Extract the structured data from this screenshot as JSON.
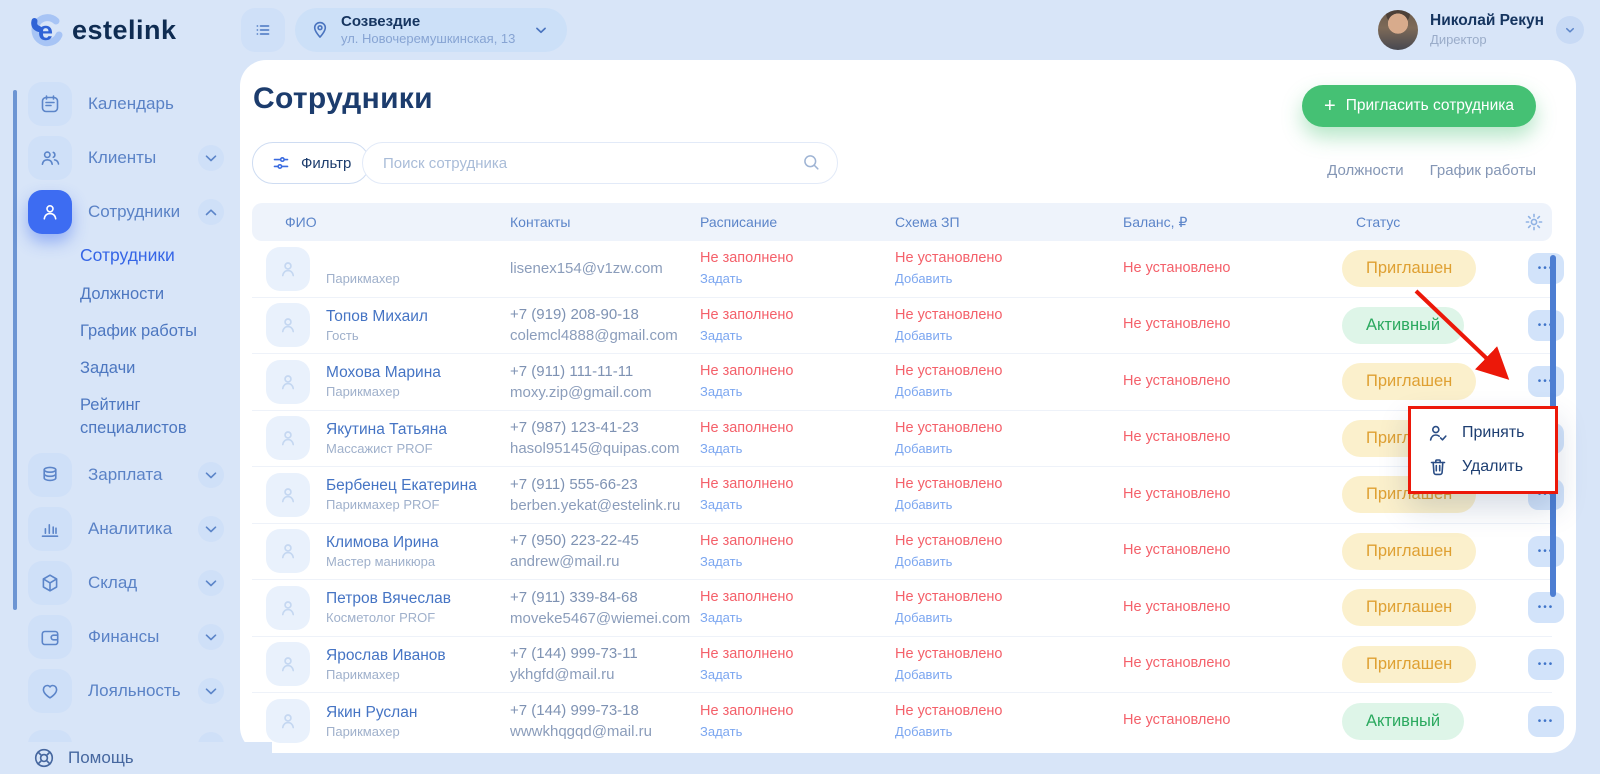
{
  "topbar": {
    "logo_text": "estelink",
    "location": {
      "title": "Созвездие",
      "subtitle": "ул. Новочеремушкинская, 13"
    },
    "user": {
      "name": "Николай Рекун",
      "role": "Директор"
    }
  },
  "sidebar": {
    "items": [
      {
        "id": "calendar",
        "label": "Календарь",
        "icon": "calendar"
      },
      {
        "id": "clients",
        "label": "Клиенты",
        "icon": "clients",
        "chevron": "down"
      },
      {
        "id": "employees",
        "label": "Сотрудники",
        "icon": "person",
        "chevron": "up",
        "active": true,
        "submenu": [
          {
            "label": "Сотрудники",
            "active": true
          },
          {
            "label": "Должности"
          },
          {
            "label": "График работы"
          },
          {
            "label": "Задачи"
          },
          {
            "label": "Рейтинг специалистов"
          }
        ]
      },
      {
        "id": "salary",
        "label": "Зарплата",
        "icon": "database",
        "chevron": "down"
      },
      {
        "id": "analytics",
        "label": "Аналитика",
        "icon": "chart",
        "chevron": "down"
      },
      {
        "id": "warehouse",
        "label": "Склад",
        "icon": "cube",
        "chevron": "down"
      },
      {
        "id": "finance",
        "label": "Финансы",
        "icon": "wallet",
        "chevron": "down"
      },
      {
        "id": "loyalty",
        "label": "Лояльность",
        "icon": "heart",
        "chevron": "down"
      }
    ],
    "help_label": "Помощь"
  },
  "main": {
    "title": "Сотрудники",
    "filter_label": "Фильтр",
    "search_placeholder": "Поиск сотрудника",
    "invite_button": {
      "plus": "+",
      "label": "Пригласить сотрудника"
    },
    "quick_links": [
      "Должности",
      "График работы"
    ],
    "table": {
      "columns": [
        "ФИО",
        "Контакты",
        "Расписание",
        "Схема ЗП",
        "Баланс, ₽",
        "Статус"
      ],
      "schedule_empty": "Не заполнено",
      "schedule_action": "Задать",
      "scheme_empty": "Не установлено",
      "scheme_action": "Добавить",
      "balance_empty": "Не установлено",
      "rows": [
        {
          "name": "",
          "role": "Парикмахер",
          "phone": "",
          "email": "lisenex154@v1zw.com",
          "status": "Приглашен",
          "status_type": "invited"
        },
        {
          "name": "Топов Михаил",
          "role": "Гость",
          "phone": "+7 (919) 208-90-18",
          "email": "colemcl4888@gmail.com",
          "status": "Активный",
          "status_type": "active"
        },
        {
          "name": "Мохова Марина",
          "role": "Парикмахер",
          "phone": "+7 (911) 111-11-11",
          "email": "moxy.zip@gmail.com",
          "status": "Приглашен",
          "status_type": "invited"
        },
        {
          "name": "Якутина Татьяна",
          "role": "Массажист PROF",
          "phone": "+7 (987) 123-41-23",
          "email": "hasol95145@quipas.com",
          "status": "Приглашен",
          "status_type": "invited"
        },
        {
          "name": "Бербенец Екатерина",
          "role": "Парикмахер PROF",
          "phone": "+7 (911) 555-66-23",
          "email": "berben.yekat@estelink.ru",
          "status": "Приглашен",
          "status_type": "invited"
        },
        {
          "name": "Климова Ирина",
          "role": "Мастер маникюра",
          "phone": "+7 (950) 223-22-45",
          "email": "andrew@mail.ru",
          "status": "Приглашен",
          "status_type": "invited"
        },
        {
          "name": "Петров Вячеслав",
          "role": "Косметолог PROF",
          "phone": "+7 (911) 339-84-68",
          "email": "moveke5467@wiemei.com",
          "status": "Приглашен",
          "status_type": "invited"
        },
        {
          "name": "Ярослав Иванов",
          "role": "Парикмахер",
          "phone": "+7 (144) 999-73-11",
          "email": "ykhgfd@mail.ru",
          "status": "Приглашен",
          "status_type": "invited"
        },
        {
          "name": "Якин Руслан",
          "role": "Парикмахер",
          "phone": "+7 (144) 999-73-18",
          "email": "wwwkhqgqd@mail.ru",
          "status": "Активный",
          "status_type": "active"
        }
      ]
    },
    "context_menu": {
      "items": [
        {
          "label": "Принять",
          "icon": "usercheck"
        },
        {
          "label": "Удалить",
          "icon": "trash"
        }
      ]
    }
  },
  "colors": {
    "accent_blue": "#3d6cf2",
    "button_green": "#45c174",
    "warning_red": "#f4606a",
    "link_blue": "#7ba6f0",
    "badge_invited_bg": "#fbf0cc",
    "badge_invited_text": "#dfa032",
    "badge_active_bg": "#def5e8",
    "badge_active_text": "#2ba95f",
    "annotation_red": "#ec1809"
  }
}
